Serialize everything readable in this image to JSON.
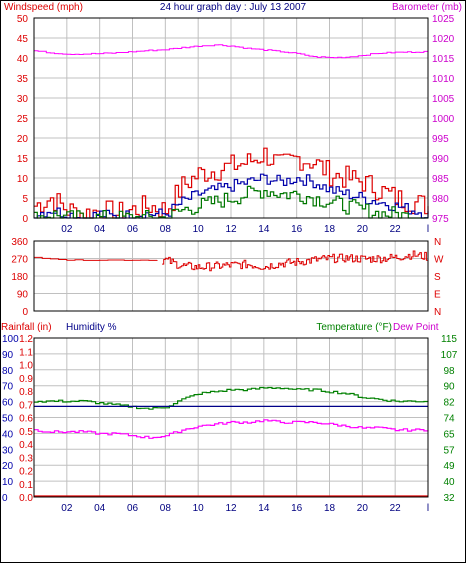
{
  "header": {
    "title": "24 hour graph day : July 13 2007",
    "left_label": "Windspeed (mph)",
    "right_label": "Barometer (mb)"
  },
  "lower_header": {
    "rainfall_label": "Rainfall (in)",
    "humidity_label": "Humidity %",
    "temperature_label": "Temperature (°F)",
    "dewpoint_label": "Dew Point"
  },
  "colors": {
    "windspeed": "#ff0000",
    "gust": "#dd0000",
    "wind_avg": "#0000aa",
    "wind_low": "#007700",
    "barometer": "#ff00ff",
    "direction": "#dd0000",
    "humidity": "#000088",
    "temperature": "#008000",
    "dewpoint": "#ff00ff",
    "rainfall": "#dd0000",
    "grid": "#c0c0c0"
  },
  "x_ticks": [
    "02",
    "04",
    "06",
    "08",
    "10",
    "12",
    "14",
    "16",
    "18",
    "20",
    "22",
    "l"
  ],
  "chart_data": [
    {
      "type": "line",
      "name": "wind-barometer-panel",
      "x": [
        0,
        1,
        2,
        3,
        4,
        5,
        6,
        7,
        8,
        9,
        10,
        11,
        12,
        13,
        14,
        15,
        16,
        17,
        18,
        19,
        20,
        21,
        22,
        23,
        24
      ],
      "y_left_ticks": [
        "0",
        "5",
        "10",
        "15",
        "20",
        "25",
        "30",
        "35",
        "40",
        "45",
        "50"
      ],
      "y_left_range": [
        0,
        50
      ],
      "y_right_ticks": [
        "975",
        "980",
        "985",
        "990",
        "995",
        "1000",
        "1005",
        "1010",
        "1015",
        "1020",
        "1025"
      ],
      "y_right_range": [
        975,
        1025
      ],
      "series": [
        {
          "name": "Windspeed (mph)",
          "role": "gust",
          "axis": "left",
          "values": [
            3,
            5,
            2,
            1,
            2,
            1,
            2,
            3,
            2,
            8,
            11,
            12,
            13,
            14,
            16,
            13,
            15,
            14,
            11,
            10,
            9,
            7,
            5,
            4,
            3
          ]
        },
        {
          "name": "",
          "role": "avg",
          "axis": "left",
          "values": [
            1,
            2,
            1,
            0,
            1,
            0,
            1,
            1,
            1,
            4,
            6,
            7,
            8,
            9,
            10,
            9,
            10,
            9,
            7,
            6,
            5,
            4,
            3,
            2,
            1
          ]
        },
        {
          "name": "",
          "role": "low",
          "axis": "left",
          "values": [
            0,
            1,
            0,
            0,
            0,
            0,
            0,
            0,
            0,
            2,
            3,
            4,
            5,
            6,
            7,
            6,
            6,
            5,
            4,
            3,
            2,
            1,
            1,
            0,
            0
          ]
        },
        {
          "name": "Barometer (mb)",
          "role": "barometer",
          "axis": "right",
          "values": [
            1016.8,
            1016.3,
            1016.0,
            1016.0,
            1016.1,
            1016.3,
            1016.6,
            1016.9,
            1017.1,
            1017.6,
            1018.0,
            1018.3,
            1018.0,
            1017.4,
            1017.0,
            1016.6,
            1016.1,
            1015.3,
            1015.1,
            1015.2,
            1015.7,
            1016.2,
            1016.4,
            1016.5,
            1016.6
          ]
        }
      ]
    },
    {
      "type": "line",
      "name": "wind-direction-panel",
      "x": [
        0,
        1,
        2,
        3,
        4,
        5,
        6,
        7,
        8,
        9,
        10,
        11,
        12,
        13,
        14,
        15,
        16,
        17,
        18,
        19,
        20,
        21,
        22,
        23,
        24
      ],
      "y_left_ticks": [
        "0",
        "90",
        "180",
        "270",
        "360"
      ],
      "y_right_ticks": [
        "N",
        "E",
        "S",
        "W",
        "N"
      ],
      "y_range": [
        0,
        360
      ],
      "series": [
        {
          "name": "",
          "role": "direction",
          "values": [
            275,
            270,
            262,
            262,
            262,
            262,
            262,
            262,
            262,
            232,
            225,
            230,
            236,
            240,
            228,
            244,
            252,
            262,
            270,
            272,
            268,
            270,
            275,
            290,
            278
          ]
        }
      ]
    },
    {
      "type": "line",
      "name": "temp-humidity-panel",
      "x": [
        0,
        1,
        2,
        3,
        4,
        5,
        6,
        7,
        8,
        9,
        10,
        11,
        12,
        13,
        14,
        15,
        16,
        17,
        18,
        19,
        20,
        21,
        22,
        23,
        24
      ],
      "y_rain_ticks": [
        "0.0",
        "0.1",
        "0.2",
        "0.3",
        "0.4",
        "0.5",
        "0.6",
        "0.7",
        "0.8",
        "0.9",
        "1.0",
        "1.1",
        "1.2"
      ],
      "y_humidity_ticks": [
        "0",
        "10",
        "20",
        "30",
        "40",
        "50",
        "60",
        "70",
        "80",
        "90",
        "100"
      ],
      "y_temp_ticks": [
        "32",
        "40",
        "49",
        "57",
        "65",
        "74",
        "82",
        "90",
        "98",
        "107",
        "115"
      ],
      "y_temp_range": [
        32,
        115
      ],
      "series": [
        {
          "name": "Temperature (°F)",
          "role": "temperature",
          "axis": "temp",
          "values": [
            82,
            82,
            82,
            82,
            81,
            80,
            79,
            78,
            79,
            83,
            86,
            87,
            88,
            88,
            89,
            89,
            88,
            88,
            87,
            86,
            84,
            83,
            82,
            82,
            82
          ]
        },
        {
          "name": "Dew Point",
          "role": "dewpoint",
          "axis": "temp",
          "values": [
            67,
            66,
            66,
            66,
            65,
            65,
            64,
            63,
            64,
            67,
            69,
            70,
            71,
            71,
            72,
            71,
            71,
            71,
            70,
            69,
            68,
            68,
            67,
            67,
            67
          ]
        },
        {
          "name": "Humidity %",
          "role": "humidity",
          "axis": "humidity",
          "values": [
            57,
            57,
            57,
            57,
            57,
            57,
            57,
            57,
            57,
            57,
            57,
            57,
            57,
            57,
            57,
            57,
            57,
            57,
            57,
            57,
            57,
            57,
            57,
            57,
            57
          ]
        },
        {
          "name": "Rainfall (in)",
          "role": "rainfall",
          "axis": "rain",
          "values": [
            0,
            0,
            0,
            0,
            0,
            0,
            0,
            0,
            0,
            0,
            0,
            0,
            0,
            0,
            0,
            0,
            0,
            0,
            0,
            0,
            0,
            0,
            0,
            0,
            0
          ]
        }
      ]
    }
  ]
}
